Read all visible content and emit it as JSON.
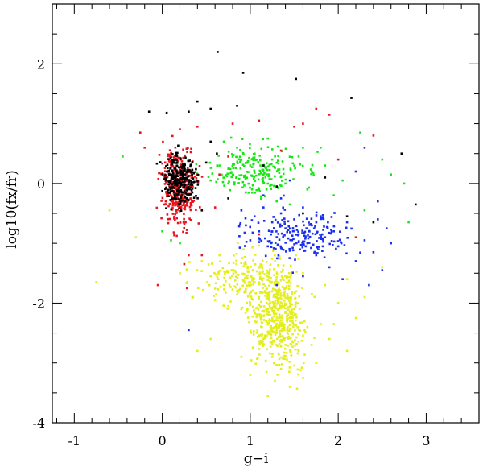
{
  "chart_data": {
    "type": "scatter",
    "title": "",
    "xlabel": "g−i",
    "ylabel": "log10(fx/fr)",
    "xlim": [
      -1.25,
      3.6
    ],
    "ylim": [
      -4.0,
      3.0
    ],
    "x_ticks": [
      "-1",
      "0",
      "1",
      "2",
      "3"
    ],
    "y_ticks": [
      "-4",
      "-2",
      "0",
      "2"
    ],
    "grid": false,
    "legend": "none",
    "series": [
      {
        "color": "#000000",
        "points": [
          [
            -0.15,
            1.2
          ],
          [
            0.05,
            1.18
          ],
          [
            0.3,
            1.2
          ],
          [
            0.4,
            1.37
          ],
          [
            0.55,
            1.25
          ],
          [
            0.85,
            1.3
          ],
          [
            0.63,
            2.2
          ],
          [
            0.92,
            1.85
          ],
          [
            1.52,
            1.75
          ],
          [
            2.15,
            1.43
          ],
          [
            0.55,
            0.7
          ],
          [
            0.62,
            0.5
          ],
          [
            0.5,
            0.35
          ],
          [
            1.3,
            -0.05
          ],
          [
            1.85,
            0.1
          ],
          [
            1.6,
            -0.5
          ],
          [
            2.4,
            -0.65
          ],
          [
            2.72,
            0.5
          ],
          [
            2.88,
            -0.35
          ],
          [
            1.15,
            0.3
          ],
          [
            0.75,
            -0.25
          ],
          [
            2.1,
            -0.55
          ],
          [
            0.45,
            -0.45
          ]
        ]
      },
      {
        "color": "#e8151e",
        "points": [
          [
            -0.25,
            0.85
          ],
          [
            -0.2,
            0.6
          ],
          [
            0.4,
            0.95
          ],
          [
            0.8,
            1.0
          ],
          [
            1.1,
            1.05
          ],
          [
            1.5,
            0.95
          ],
          [
            1.6,
            1.0
          ],
          [
            1.75,
            1.25
          ],
          [
            1.9,
            1.15
          ],
          [
            1.1,
            -0.85
          ],
          [
            0.3,
            -1.2
          ],
          [
            0.25,
            -1.35
          ],
          [
            0.28,
            -1.75
          ],
          [
            0.45,
            -1.2
          ],
          [
            -0.05,
            -1.7
          ],
          [
            2.4,
            0.8
          ],
          [
            2.0,
            0.4
          ],
          [
            2.2,
            -0.9
          ],
          [
            1.35,
            0.55
          ],
          [
            0.65,
            0.15
          ],
          [
            0.75,
            0.45
          ],
          [
            0.6,
            -0.4
          ]
        ]
      },
      {
        "color": "#16e813",
        "points": [
          [
            -0.45,
            0.45
          ],
          [
            0.0,
            -0.8
          ],
          [
            0.1,
            -0.95
          ],
          [
            0.2,
            -1.0
          ],
          [
            0.7,
            0.7
          ],
          [
            0.8,
            0.45
          ],
          [
            0.75,
            0.0
          ],
          [
            0.9,
            0.4
          ],
          [
            0.95,
            0.1
          ],
          [
            1.0,
            0.3
          ],
          [
            1.05,
            0.5
          ],
          [
            1.1,
            -0.1
          ],
          [
            1.15,
            0.15
          ],
          [
            1.25,
            0.4
          ],
          [
            1.3,
            -0.3
          ],
          [
            1.4,
            0.0
          ],
          [
            1.5,
            0.3
          ],
          [
            1.55,
            0.45
          ],
          [
            1.65,
            -0.1
          ],
          [
            1.7,
            0.2
          ],
          [
            1.8,
            0.6
          ],
          [
            1.85,
            0.3
          ],
          [
            1.95,
            -0.2
          ],
          [
            2.05,
            0.05
          ],
          [
            2.25,
            0.85
          ],
          [
            2.5,
            0.4
          ],
          [
            2.6,
            0.15
          ],
          [
            2.75,
            0.0
          ],
          [
            2.8,
            -0.65
          ],
          [
            0.65,
            0.3
          ],
          [
            0.85,
            0.6
          ],
          [
            1.2,
            0.75
          ],
          [
            0.95,
            -0.15
          ],
          [
            1.45,
            -0.35
          ],
          [
            1.6,
            0.6
          ],
          [
            2.3,
            -0.45
          ],
          [
            0.55,
            0.05
          ]
        ]
      },
      {
        "color": "#1a2ff0",
        "points": [
          [
            0.95,
            -0.7
          ],
          [
            1.0,
            -0.95
          ],
          [
            1.05,
            -0.55
          ],
          [
            1.1,
            -0.8
          ],
          [
            1.15,
            -0.4
          ],
          [
            1.2,
            -1.05
          ],
          [
            1.25,
            -0.65
          ],
          [
            1.3,
            -0.9
          ],
          [
            1.35,
            -0.5
          ],
          [
            1.4,
            -0.75
          ],
          [
            1.45,
            -1.1
          ],
          [
            1.5,
            -0.6
          ],
          [
            1.55,
            -0.85
          ],
          [
            1.6,
            -0.4
          ],
          [
            1.65,
            -1.0
          ],
          [
            1.7,
            -0.7
          ],
          [
            1.75,
            -1.2
          ],
          [
            1.8,
            -0.55
          ],
          [
            1.85,
            -0.9
          ],
          [
            1.9,
            -1.4
          ],
          [
            1.95,
            -0.8
          ],
          [
            2.0,
            -1.05
          ],
          [
            2.1,
            -0.65
          ],
          [
            2.2,
            -1.3
          ],
          [
            2.3,
            -0.95
          ],
          [
            2.4,
            -1.15
          ],
          [
            2.45,
            -0.6
          ],
          [
            2.5,
            -1.45
          ],
          [
            2.55,
            -0.75
          ],
          [
            2.6,
            -1.0
          ],
          [
            2.35,
            -1.7
          ],
          [
            1.6,
            -1.55
          ],
          [
            2.2,
            0.2
          ],
          [
            2.45,
            -0.3
          ],
          [
            2.3,
            0.6
          ],
          [
            0.3,
            -2.45
          ],
          [
            1.3,
            -1.7
          ],
          [
            2.05,
            -1.6
          ],
          [
            1.15,
            -0.2
          ],
          [
            1.45,
            0.05
          ],
          [
            1.35,
            -0.25
          ],
          [
            0.9,
            -0.45
          ]
        ]
      },
      {
        "color": "#e3ee1a",
        "points": [
          [
            -0.75,
            -1.65
          ],
          [
            -0.6,
            -0.45
          ],
          [
            -0.3,
            -0.9
          ],
          [
            0.2,
            -1.5
          ],
          [
            0.35,
            -1.9
          ],
          [
            0.45,
            -1.3
          ],
          [
            0.55,
            -1.55
          ],
          [
            0.6,
            -1.95
          ],
          [
            0.65,
            -1.2
          ],
          [
            0.7,
            -1.7
          ],
          [
            0.75,
            -2.05
          ],
          [
            0.8,
            -1.45
          ],
          [
            0.85,
            -1.8
          ],
          [
            0.9,
            -2.1
          ],
          [
            0.95,
            -1.35
          ],
          [
            1.0,
            -1.65
          ],
          [
            1.05,
            -2.3
          ],
          [
            1.1,
            -1.9
          ],
          [
            1.15,
            -2.6
          ],
          [
            1.2,
            -2.2
          ],
          [
            1.25,
            -2.9
          ],
          [
            1.28,
            -3.3
          ],
          [
            1.3,
            -2.5
          ],
          [
            1.35,
            -3.1
          ],
          [
            1.4,
            -2.7
          ],
          [
            1.45,
            -3.4
          ],
          [
            1.5,
            -2.1
          ],
          [
            1.55,
            -2.8
          ],
          [
            1.6,
            -1.5
          ],
          [
            1.65,
            -2.4
          ],
          [
            1.7,
            -1.85
          ],
          [
            1.75,
            -3.0
          ],
          [
            1.8,
            -2.35
          ],
          [
            1.85,
            -1.7
          ],
          [
            1.9,
            -2.6
          ],
          [
            2.0,
            -2.0
          ],
          [
            2.1,
            -1.6
          ],
          [
            2.2,
            -2.25
          ],
          [
            2.3,
            -1.9
          ],
          [
            2.5,
            -1.4
          ],
          [
            1.2,
            -3.55
          ],
          [
            1.0,
            -3.2
          ],
          [
            0.9,
            -2.9
          ],
          [
            1.6,
            -3.25
          ],
          [
            0.4,
            -2.8
          ],
          [
            0.55,
            -2.6
          ],
          [
            2.1,
            -2.8
          ],
          [
            1.95,
            -2.35
          ]
        ]
      }
    ]
  }
}
